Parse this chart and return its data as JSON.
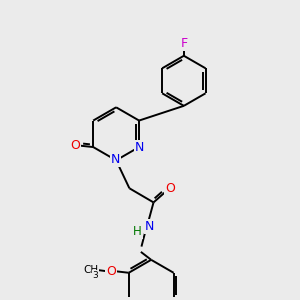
{
  "bg_color": "#ebebeb",
  "bond_color": "#000000",
  "bond_width": 1.4,
  "atom_colors": {
    "N": "#0000ee",
    "O": "#ee0000",
    "F": "#cc00cc",
    "H": "#007700",
    "C": "#000000"
  },
  "fig_size": [
    3.0,
    3.0
  ],
  "dpi": 100
}
